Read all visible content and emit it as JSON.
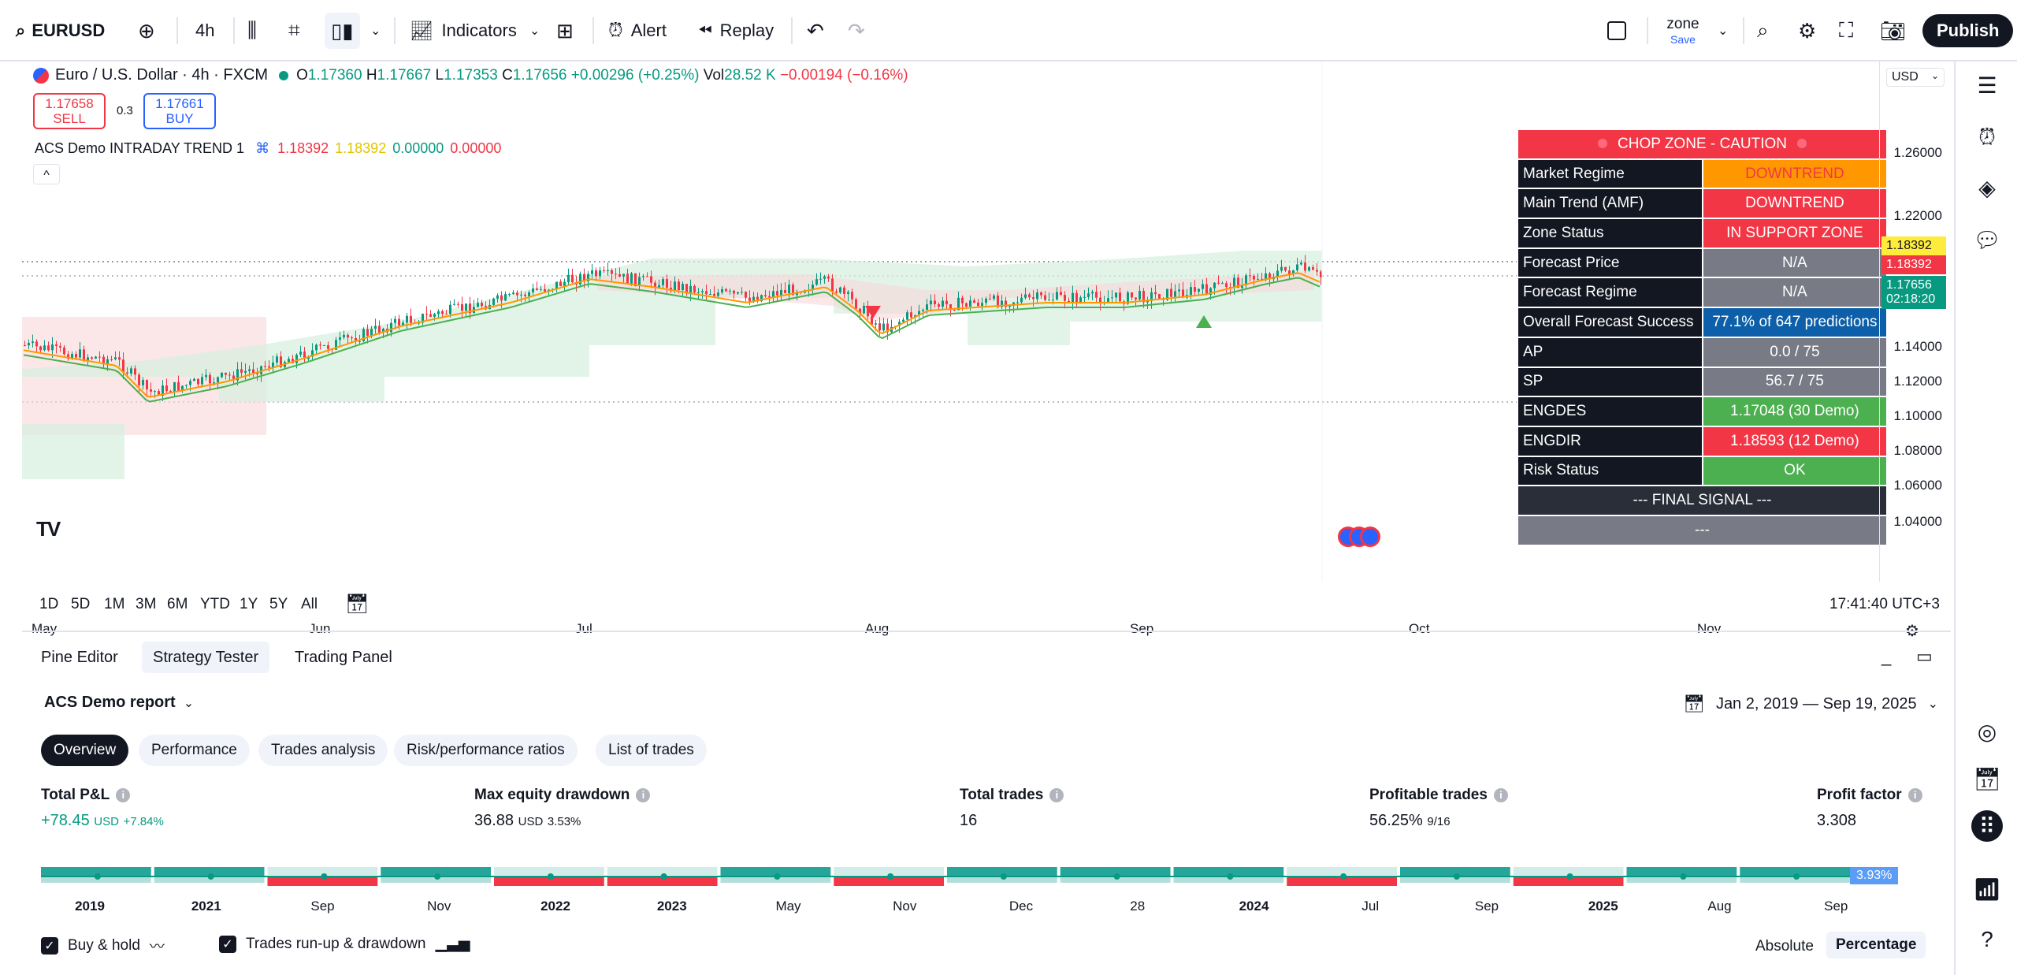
{
  "toolbar": {
    "symbol": "EURUSD",
    "interval": "4h",
    "indicators_label": "Indicators",
    "alert_label": "Alert",
    "replay_label": "Replay",
    "layout_name": "zone",
    "layout_status": "Save",
    "publish_label": "Publish"
  },
  "legend": {
    "title": "Euro / U.S. Dollar · 4h · FXCM",
    "o_label": "O",
    "o_val": "1.17360",
    "h_label": "H",
    "h_val": "1.17667",
    "l_label": "L",
    "l_val": "1.17353",
    "c_label": "C",
    "c_val": "1.17656",
    "change": "+0.00296 (+0.25%)",
    "vol_label": "Vol",
    "vol_val": "28.52 K",
    "vol_change": "−0.00194 (−0.16%)",
    "sell_price": "1.17658",
    "sell_label": "SELL",
    "spread": "0.3",
    "buy_price": "1.17661",
    "buy_label": "BUY",
    "indicator_name": "ACS Demo INTRADAY TREND 1",
    "ind_v1": "1.18392",
    "ind_v2": "1.18392",
    "ind_v3": "0.00000",
    "ind_v4": "0.00000",
    "collapse_label": "^"
  },
  "table": {
    "header": "CHOP ZONE - CAUTION",
    "rows": [
      {
        "key": "Market Regime",
        "value": "DOWNTREND",
        "color": "#ff9800",
        "text": "#f23645"
      },
      {
        "key": "Main Trend (AMF)",
        "value": "DOWNTREND",
        "color": "#f23645",
        "text": "#ffffff"
      },
      {
        "key": "Zone Status",
        "value": "IN SUPPORT ZONE",
        "color": "#f23645",
        "text": "#ffffff"
      },
      {
        "key": "Forecast Price",
        "value": "N/A",
        "color": "#787b86",
        "text": "#ffffff"
      },
      {
        "key": "Forecast Regime",
        "value": "N/A",
        "color": "#787b86",
        "text": "#ffffff"
      },
      {
        "key": "Overall Forecast Success",
        "value": "77.1% of 647 predictions",
        "color": "#0c5fa8",
        "text": "#ffffff"
      },
      {
        "key": "AP",
        "value": "0.0 / 75",
        "color": "#787b86",
        "text": "#ffffff"
      },
      {
        "key": "SP",
        "value": "56.7 / 75",
        "color": "#787b86",
        "text": "#ffffff"
      },
      {
        "key": "ENGDES",
        "value": "1.17048 (30 Demo)",
        "color": "#4caf50",
        "text": "#ffffff"
      },
      {
        "key": "ENGDIR",
        "value": "1.18593 (12 Demo)",
        "color": "#f23645",
        "text": "#ffffff"
      },
      {
        "key": "Risk Status",
        "value": "OK",
        "color": "#4caf50",
        "text": "#ffffff"
      }
    ],
    "final_signal": "--- FINAL SIGNAL ---",
    "final_value": "---"
  },
  "price_scale": {
    "currency": "USD",
    "labels": [
      "1.26000",
      "1.22000",
      "1.14000",
      "1.12000",
      "1.10000",
      "1.08000",
      "1.06000",
      "1.04000"
    ],
    "tag_yellow": "1.18392",
    "tag_red": "1.18392",
    "tag_green_price": "1.17656",
    "tag_green_time": "02:18:20"
  },
  "time_axis": [
    "May",
    "Jun",
    "Jul",
    "Aug",
    "Sep",
    "Oct",
    "Nov"
  ],
  "range_bar": {
    "ranges": [
      "1D",
      "5D",
      "1M",
      "3M",
      "6M",
      "YTD",
      "1Y",
      "5Y",
      "All"
    ],
    "clock": "17:41:40 UTC+3"
  },
  "panel": {
    "tabs": [
      "Pine Editor",
      "Strategy Tester",
      "Trading Panel"
    ],
    "report": "ACS Demo report",
    "date_range": "Jan 2, 2019 — Sep 19, 2025",
    "subtabs": [
      "Overview",
      "Performance",
      "Trades analysis",
      "Risk/performance ratios",
      "List of trades"
    ],
    "stats": {
      "pnl_label": "Total P&L",
      "pnl_value": "+78.45",
      "pnl_unit": "USD",
      "pnl_pct": "+7.84%",
      "dd_label": "Max equity drawdown",
      "dd_value": "36.88",
      "dd_unit": "USD",
      "dd_pct": "3.53%",
      "trades_label": "Total trades",
      "trades_value": "16",
      "prof_label": "Profitable trades",
      "prof_value": "56.25%",
      "prof_ratio": "9/16",
      "pf_label": "Profit factor",
      "pf_value": "3.308"
    },
    "equity_tag": "3.93%",
    "year_labels": [
      "2019",
      "2021",
      "Sep",
      "Nov",
      "2022",
      "2023",
      "May",
      "Nov",
      "Dec",
      "28",
      "2024",
      "Jul",
      "Sep",
      "2025",
      "Aug",
      "Sep"
    ],
    "checkbox1": "Buy & hold",
    "checkbox2": "Trades run-up & drawdown",
    "mode_absolute": "Absolute",
    "mode_percentage": "Percentage"
  },
  "colors": {
    "up": "#089981",
    "down": "#f23645",
    "accent": "#2962ff"
  }
}
